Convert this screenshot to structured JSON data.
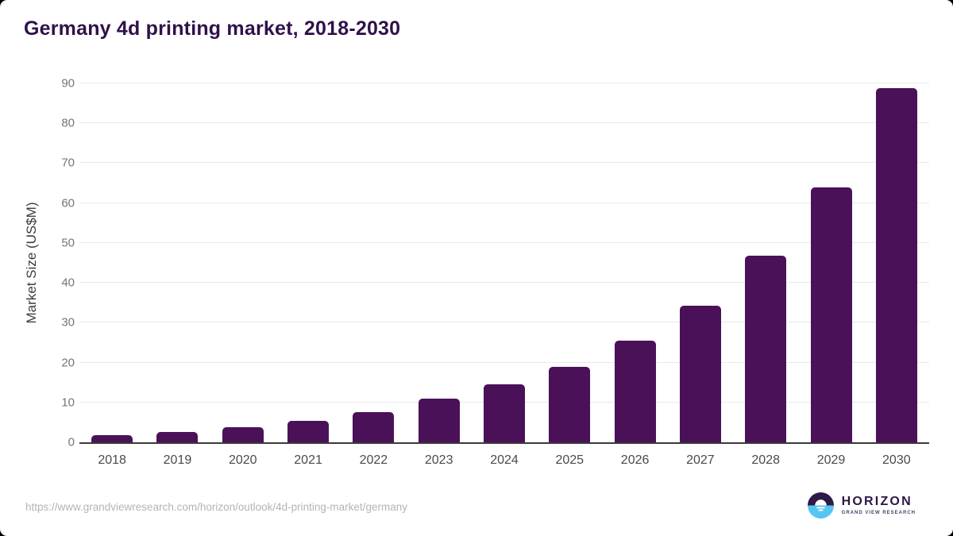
{
  "header": {
    "title": "Germany 4d printing market, 2018-2030"
  },
  "chart_data": {
    "type": "bar",
    "title": "Germany 4d printing market, 2018-2030",
    "categories": [
      "2018",
      "2019",
      "2020",
      "2021",
      "2022",
      "2023",
      "2024",
      "2025",
      "2026",
      "2027",
      "2028",
      "2029",
      "2030"
    ],
    "values": [
      1.8,
      2.5,
      3.7,
      5.3,
      7.5,
      10.9,
      14.5,
      19.0,
      25.4,
      34.2,
      46.8,
      64.0,
      88.9
    ],
    "xlabel": "",
    "ylabel": "Market Size (US$M)",
    "ylim": [
      0,
      90
    ],
    "yticks": [
      0,
      10,
      20,
      30,
      40,
      50,
      60,
      70,
      80,
      90
    ],
    "grid": "horizontal",
    "legend": "none",
    "bar_color": "#4a1158",
    "gridline_color": "#e9e9e9"
  },
  "footer": {
    "source_url": "https://www.grandviewresearch.com/horizon/outlook/4d-printing-market/germany",
    "logo": {
      "name": "HORIZON",
      "subtitle": "GRAND VIEW RESEARCH",
      "dark_color": "#2e1a47",
      "blue_color": "#56c5f1"
    }
  }
}
